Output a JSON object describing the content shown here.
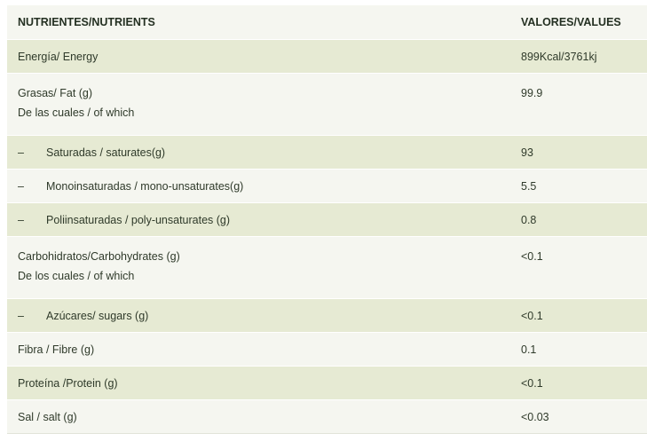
{
  "header": {
    "nutrients": "NUTRIENTES/NUTRIENTS",
    "values": "VALORES/VALUES"
  },
  "rows": [
    {
      "name": "Energía/ Energy",
      "value": "899Kcal/3761kj"
    },
    {
      "name": "Grasas/ Fat (g)",
      "subname": "De las cuales / of which",
      "value": "99.9"
    },
    {
      "dash": "–",
      "name": "Saturadas / saturates(g)",
      "value": "93"
    },
    {
      "dash": "–",
      "name": "Monoinsaturadas / mono-unsaturates(g)",
      "value": "5.5"
    },
    {
      "dash": "–",
      "name": "Poliinsaturadas / poly-unsaturates (g)",
      "value": "0.8"
    },
    {
      "name": "Carbohidratos/Carbohydrates (g)",
      "subname": "De los cuales / of which",
      "value": "<0.1"
    },
    {
      "dash": "–",
      "name": "Azúcares/ sugars (g)",
      "value": "<0.1"
    },
    {
      "name": "Fibra / Fibre (g)",
      "value": "0.1"
    },
    {
      "name": "Proteína /Protein (g)",
      "value": "<0.1"
    },
    {
      "name": "Sal / salt (g)",
      "value": "<0.03"
    }
  ]
}
